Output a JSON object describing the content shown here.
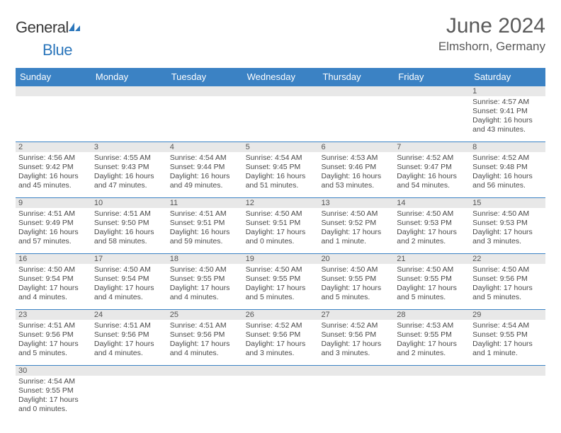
{
  "logo": {
    "text_general": "General",
    "text_blue": "Blue",
    "icon_color": "#2b76bb"
  },
  "header": {
    "month_title": "June 2024",
    "location": "Elmshorn, Germany"
  },
  "calendar": {
    "header_bg": "#3b82c4",
    "daynum_bg": "#e8e8e8",
    "border_color": "#3b82c4",
    "days_of_week": [
      "Sunday",
      "Monday",
      "Tuesday",
      "Wednesday",
      "Thursday",
      "Friday",
      "Saturday"
    ],
    "weeks": [
      {
        "nums": [
          "",
          "",
          "",
          "",
          "",
          "",
          "1"
        ],
        "cells": [
          null,
          null,
          null,
          null,
          null,
          null,
          {
            "sunrise": "Sunrise: 4:57 AM",
            "sunset": "Sunset: 9:41 PM",
            "daylight": "Daylight: 16 hours and 43 minutes."
          }
        ]
      },
      {
        "nums": [
          "2",
          "3",
          "4",
          "5",
          "6",
          "7",
          "8"
        ],
        "cells": [
          {
            "sunrise": "Sunrise: 4:56 AM",
            "sunset": "Sunset: 9:42 PM",
            "daylight": "Daylight: 16 hours and 45 minutes."
          },
          {
            "sunrise": "Sunrise: 4:55 AM",
            "sunset": "Sunset: 9:43 PM",
            "daylight": "Daylight: 16 hours and 47 minutes."
          },
          {
            "sunrise": "Sunrise: 4:54 AM",
            "sunset": "Sunset: 9:44 PM",
            "daylight": "Daylight: 16 hours and 49 minutes."
          },
          {
            "sunrise": "Sunrise: 4:54 AM",
            "sunset": "Sunset: 9:45 PM",
            "daylight": "Daylight: 16 hours and 51 minutes."
          },
          {
            "sunrise": "Sunrise: 4:53 AM",
            "sunset": "Sunset: 9:46 PM",
            "daylight": "Daylight: 16 hours and 53 minutes."
          },
          {
            "sunrise": "Sunrise: 4:52 AM",
            "sunset": "Sunset: 9:47 PM",
            "daylight": "Daylight: 16 hours and 54 minutes."
          },
          {
            "sunrise": "Sunrise: 4:52 AM",
            "sunset": "Sunset: 9:48 PM",
            "daylight": "Daylight: 16 hours and 56 minutes."
          }
        ]
      },
      {
        "nums": [
          "9",
          "10",
          "11",
          "12",
          "13",
          "14",
          "15"
        ],
        "cells": [
          {
            "sunrise": "Sunrise: 4:51 AM",
            "sunset": "Sunset: 9:49 PM",
            "daylight": "Daylight: 16 hours and 57 minutes."
          },
          {
            "sunrise": "Sunrise: 4:51 AM",
            "sunset": "Sunset: 9:50 PM",
            "daylight": "Daylight: 16 hours and 58 minutes."
          },
          {
            "sunrise": "Sunrise: 4:51 AM",
            "sunset": "Sunset: 9:51 PM",
            "daylight": "Daylight: 16 hours and 59 minutes."
          },
          {
            "sunrise": "Sunrise: 4:50 AM",
            "sunset": "Sunset: 9:51 PM",
            "daylight": "Daylight: 17 hours and 0 minutes."
          },
          {
            "sunrise": "Sunrise: 4:50 AM",
            "sunset": "Sunset: 9:52 PM",
            "daylight": "Daylight: 17 hours and 1 minute."
          },
          {
            "sunrise": "Sunrise: 4:50 AM",
            "sunset": "Sunset: 9:53 PM",
            "daylight": "Daylight: 17 hours and 2 minutes."
          },
          {
            "sunrise": "Sunrise: 4:50 AM",
            "sunset": "Sunset: 9:53 PM",
            "daylight": "Daylight: 17 hours and 3 minutes."
          }
        ]
      },
      {
        "nums": [
          "16",
          "17",
          "18",
          "19",
          "20",
          "21",
          "22"
        ],
        "cells": [
          {
            "sunrise": "Sunrise: 4:50 AM",
            "sunset": "Sunset: 9:54 PM",
            "daylight": "Daylight: 17 hours and 4 minutes."
          },
          {
            "sunrise": "Sunrise: 4:50 AM",
            "sunset": "Sunset: 9:54 PM",
            "daylight": "Daylight: 17 hours and 4 minutes."
          },
          {
            "sunrise": "Sunrise: 4:50 AM",
            "sunset": "Sunset: 9:55 PM",
            "daylight": "Daylight: 17 hours and 4 minutes."
          },
          {
            "sunrise": "Sunrise: 4:50 AM",
            "sunset": "Sunset: 9:55 PM",
            "daylight": "Daylight: 17 hours and 5 minutes."
          },
          {
            "sunrise": "Sunrise: 4:50 AM",
            "sunset": "Sunset: 9:55 PM",
            "daylight": "Daylight: 17 hours and 5 minutes."
          },
          {
            "sunrise": "Sunrise: 4:50 AM",
            "sunset": "Sunset: 9:55 PM",
            "daylight": "Daylight: 17 hours and 5 minutes."
          },
          {
            "sunrise": "Sunrise: 4:50 AM",
            "sunset": "Sunset: 9:56 PM",
            "daylight": "Daylight: 17 hours and 5 minutes."
          }
        ]
      },
      {
        "nums": [
          "23",
          "24",
          "25",
          "26",
          "27",
          "28",
          "29"
        ],
        "cells": [
          {
            "sunrise": "Sunrise: 4:51 AM",
            "sunset": "Sunset: 9:56 PM",
            "daylight": "Daylight: 17 hours and 5 minutes."
          },
          {
            "sunrise": "Sunrise: 4:51 AM",
            "sunset": "Sunset: 9:56 PM",
            "daylight": "Daylight: 17 hours and 4 minutes."
          },
          {
            "sunrise": "Sunrise: 4:51 AM",
            "sunset": "Sunset: 9:56 PM",
            "daylight": "Daylight: 17 hours and 4 minutes."
          },
          {
            "sunrise": "Sunrise: 4:52 AM",
            "sunset": "Sunset: 9:56 PM",
            "daylight": "Daylight: 17 hours and 3 minutes."
          },
          {
            "sunrise": "Sunrise: 4:52 AM",
            "sunset": "Sunset: 9:56 PM",
            "daylight": "Daylight: 17 hours and 3 minutes."
          },
          {
            "sunrise": "Sunrise: 4:53 AM",
            "sunset": "Sunset: 9:55 PM",
            "daylight": "Daylight: 17 hours and 2 minutes."
          },
          {
            "sunrise": "Sunrise: 4:54 AM",
            "sunset": "Sunset: 9:55 PM",
            "daylight": "Daylight: 17 hours and 1 minute."
          }
        ]
      },
      {
        "nums": [
          "30",
          "",
          "",
          "",
          "",
          "",
          ""
        ],
        "cells": [
          {
            "sunrise": "Sunrise: 4:54 AM",
            "sunset": "Sunset: 9:55 PM",
            "daylight": "Daylight: 17 hours and 0 minutes."
          },
          null,
          null,
          null,
          null,
          null,
          null
        ]
      }
    ]
  }
}
